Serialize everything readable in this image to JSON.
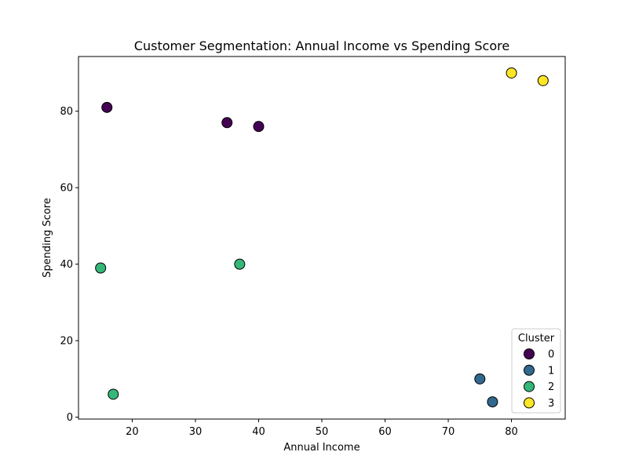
{
  "chart_data": {
    "type": "scatter",
    "title": "Customer Segmentation: Annual Income vs Spending Score",
    "xlabel": "Annual Income",
    "ylabel": "Spending Score",
    "xlim": [
      11.5,
      88.5
    ],
    "ylim": [
      -0.5,
      94.3
    ],
    "xticks": [
      20,
      30,
      40,
      50,
      60,
      70,
      80
    ],
    "yticks": [
      0,
      20,
      40,
      60,
      80
    ],
    "grid": false,
    "legend": {
      "title": "Cluster",
      "placement": "bottom-right"
    },
    "series": [
      {
        "name": "0",
        "color": "#440154",
        "points": [
          {
            "x": 16,
            "y": 81
          },
          {
            "x": 35,
            "y": 77
          },
          {
            "x": 40,
            "y": 76
          }
        ]
      },
      {
        "name": "1",
        "color": "#31688e",
        "points": [
          {
            "x": 75,
            "y": 10
          },
          {
            "x": 77,
            "y": 4
          }
        ]
      },
      {
        "name": "2",
        "color": "#35b779",
        "points": [
          {
            "x": 15,
            "y": 39
          },
          {
            "x": 37,
            "y": 40
          },
          {
            "x": 17,
            "y": 6
          }
        ]
      },
      {
        "name": "3",
        "color": "#fde725",
        "points": [
          {
            "x": 80,
            "y": 90
          },
          {
            "x": 85,
            "y": 88
          }
        ]
      }
    ]
  }
}
